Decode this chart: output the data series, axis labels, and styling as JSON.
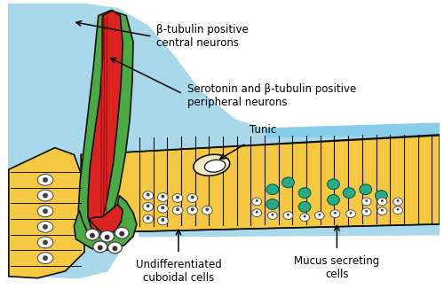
{
  "bg_color": "#ffffff",
  "light_blue": "#a8d8ea",
  "light_blue2": "#87ceeb",
  "orange_yellow": "#f5c842",
  "red": "#dd2222",
  "green": "#4aaa44",
  "teal": "#2aaa88",
  "dark_outline": "#111111",
  "labels": {
    "beta_tubulin": "β-tubulin positive\ncentral neurons",
    "serotonin": "Serotonin and β-tubulin positive\nperipheral neurons",
    "tunic": "Tunic",
    "undiff": "Undifferentiated\ncuboidal cells",
    "mucus": "Mucus secreting\ncells"
  },
  "figsize": [
    5.0,
    3.26
  ],
  "dpi": 100
}
